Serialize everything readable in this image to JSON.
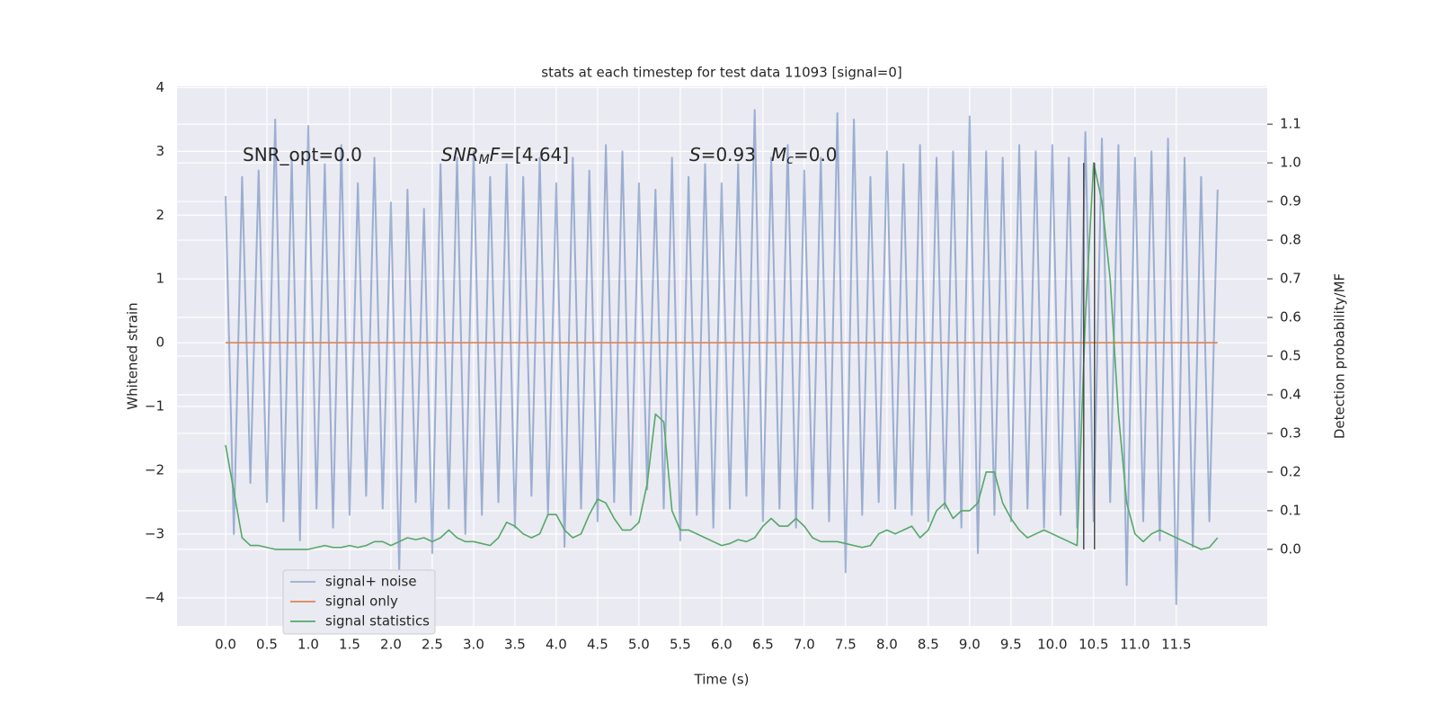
{
  "chart_data": {
    "type": "line",
    "title": "stats at each timestep for test data 11093 [signal=0]",
    "xlabel": "Time (s)",
    "ylabel": "Whitened strain",
    "y2label": "Detection probability/MF",
    "xlim": [
      -0.587,
      12.6
    ],
    "ylim": [
      -4.44,
      4.02
    ],
    "y2lim": [
      -0.198,
      1.198
    ],
    "xticks": [
      {
        "value": 0,
        "label": "0.0"
      },
      0.5,
      {
        "value": 1,
        "label": "1.0"
      },
      1.5,
      {
        "value": 2,
        "label": "2.0"
      },
      2.5,
      {
        "value": 3,
        "label": "3.0"
      },
      3.5,
      {
        "value": 4,
        "label": "4.0"
      },
      4.5,
      {
        "value": 5,
        "label": "5.0"
      },
      5.5,
      {
        "value": 6,
        "label": "6.0"
      },
      6.5,
      {
        "value": 7,
        "label": "7.0"
      },
      7.5,
      {
        "value": 8,
        "label": "8.0"
      },
      8.5,
      {
        "value": 9,
        "label": "9.0"
      },
      9.5,
      {
        "value": 10,
        "label": "10.0"
      },
      10.5,
      {
        "value": 11,
        "label": "11.0"
      },
      11.5
    ],
    "yticks": [
      {
        "value": -4,
        "label": "−4"
      },
      {
        "value": -3,
        "label": "−3"
      },
      {
        "value": -2,
        "label": "−2"
      },
      {
        "value": -1,
        "label": "−1"
      },
      0,
      1,
      2,
      3,
      4
    ],
    "y2ticks": [
      {
        "value": 0,
        "label": "0.0"
      },
      0.1,
      0.2,
      0.3,
      0.4,
      0.5,
      0.6,
      0.7,
      0.8,
      0.9,
      {
        "value": 1,
        "label": "1.0"
      },
      1.1
    ],
    "grid": true,
    "legend": "lower left",
    "x": [
      0,
      0.1,
      0.2,
      0.3,
      0.4,
      0.5,
      0.6,
      0.7,
      0.8,
      0.9,
      1,
      1.1,
      1.2,
      1.3,
      1.4,
      1.5,
      1.6,
      1.7,
      1.8,
      1.9,
      2,
      2.1,
      2.2,
      2.3,
      2.4,
      2.5,
      2.6,
      2.7,
      2.8,
      2.9,
      3,
      3.1,
      3.2,
      3.3,
      3.4,
      3.5,
      3.6,
      3.7,
      3.8,
      3.9,
      4,
      4.1,
      4.2,
      4.3,
      4.4,
      4.5,
      4.6,
      4.7,
      4.8,
      4.9,
      5,
      5.1,
      5.2,
      5.3,
      5.4,
      5.5,
      5.6,
      5.7,
      5.8,
      5.9,
      6,
      6.1,
      6.2,
      6.3,
      6.4,
      6.5,
      6.6,
      6.7,
      6.8,
      6.9,
      7,
      7.1,
      7.2,
      7.3,
      7.4,
      7.5,
      7.6,
      7.7,
      7.8,
      7.9,
      8,
      8.1,
      8.2,
      8.3,
      8.4,
      8.5,
      8.6,
      8.7,
      8.8,
      8.9,
      9,
      9.1,
      9.2,
      9.3,
      9.4,
      9.5,
      9.6,
      9.7,
      9.8,
      9.9,
      10,
      10.1,
      10.2,
      10.3,
      10.4,
      10.5,
      10.6,
      10.7,
      10.8,
      10.9,
      11,
      11.1,
      11.2,
      11.3,
      11.4,
      11.5,
      11.6,
      11.7,
      11.8,
      11.9,
      12
    ],
    "series": [
      {
        "name": "signal+ noise",
        "color": "#4c72b0",
        "alpha": 0.5,
        "values": [
          2.3,
          -3.0,
          2.6,
          -2.2,
          2.7,
          -2.5,
          3.5,
          -2.8,
          2.9,
          -3.1,
          3.4,
          -2.6,
          2.8,
          -2.9,
          3.1,
          -2.7,
          2.5,
          -2.4,
          2.9,
          -2.6,
          2.2,
          -3.6,
          2.4,
          -2.5,
          2.1,
          -3.3,
          2.8,
          -2.6,
          2.9,
          -3.0,
          3.0,
          -2.7,
          2.6,
          -2.5,
          2.8,
          -2.9,
          2.6,
          -2.4,
          2.9,
          -2.7,
          2.5,
          -3.2,
          2.9,
          -2.6,
          2.7,
          -2.8,
          3.1,
          -2.5,
          3.0,
          -2.7,
          2.5,
          -2.3,
          2.4,
          -2.6,
          2.9,
          -3.1,
          2.6,
          -2.7,
          2.8,
          -2.9,
          2.5,
          -2.6,
          2.8,
          -2.4,
          3.65,
          -2.8,
          2.9,
          -2.6,
          3.1,
          -2.9,
          2.7,
          -2.6,
          2.9,
          -2.8,
          3.6,
          -3.6,
          3.5,
          -2.7,
          2.6,
          -2.5,
          3.0,
          -2.6,
          2.8,
          -2.7,
          3.1,
          -2.8,
          2.9,
          -2.6,
          3.0,
          -2.9,
          3.55,
          -3.3,
          3.0,
          -2.7,
          2.9,
          -2.8,
          3.1,
          -2.6,
          3.0,
          -2.9,
          3.1,
          -2.7,
          2.9,
          -2.9,
          3.3,
          -2.8,
          3.2,
          -2.5,
          3.1,
          -3.8,
          2.9,
          -2.8,
          3.0,
          -3.1,
          3.2,
          -4.1,
          2.9,
          -3.2,
          2.6,
          -2.8,
          2.4
        ]
      },
      {
        "name": "signal only",
        "color": "#dd8452",
        "x": [
          0,
          12
        ],
        "values": [
          0,
          0
        ]
      },
      {
        "name": "signal statistics",
        "color": "#55a868",
        "axis": "y2",
        "values": [
          0.27,
          0.15,
          0.03,
          0.01,
          0.01,
          0.005,
          0,
          0,
          0,
          0,
          0,
          0.005,
          0.01,
          0.005,
          0.005,
          0.01,
          0.005,
          0.01,
          0.02,
          0.02,
          0.01,
          0.02,
          0.03,
          0.025,
          0.03,
          0.02,
          0.03,
          0.05,
          0.03,
          0.02,
          0.02,
          0.015,
          0.01,
          0.03,
          0.07,
          0.06,
          0.04,
          0.03,
          0.04,
          0.09,
          0.09,
          0.05,
          0.03,
          0.04,
          0.09,
          0.13,
          0.12,
          0.08,
          0.05,
          0.05,
          0.07,
          0.17,
          0.35,
          0.33,
          0.1,
          0.05,
          0.05,
          0.04,
          0.03,
          0.02,
          0.01,
          0.015,
          0.025,
          0.02,
          0.03,
          0.06,
          0.08,
          0.06,
          0.06,
          0.08,
          0.06,
          0.03,
          0.02,
          0.02,
          0.02,
          0.015,
          0.01,
          0.005,
          0.01,
          0.04,
          0.05,
          0.04,
          0.05,
          0.06,
          0.03,
          0.05,
          0.1,
          0.12,
          0.08,
          0.1,
          0.1,
          0.12,
          0.2,
          0.2,
          0.12,
          0.08,
          0.05,
          0.03,
          0.04,
          0.05,
          0.04,
          0.03,
          0.02,
          0.01,
          0.6,
          1.0,
          0.9,
          0.7,
          0.35,
          0.12,
          0.04,
          0.02,
          0.04,
          0.05,
          0.04,
          0.03,
          0.02,
          0.01,
          0,
          0.005,
          0.03
        ]
      }
    ],
    "vlines": {
      "x": [
        10.38,
        10.51
      ],
      "color": "#4a4a4a",
      "y2range": [
        0,
        1.0
      ]
    },
    "annotations": [
      [
        {
          "text": "SNR_opt=0.0"
        }
      ],
      [
        {
          "text": "SNR",
          "it": true
        },
        {
          "text": "M",
          "it": true,
          "sub": true
        },
        {
          "text": "F",
          "it": true
        },
        {
          "text": "=[4.64]"
        }
      ],
      [
        {
          "text": "S",
          "it": true
        },
        {
          "text": "=0.93"
        }
      ],
      [
        {
          "text": "M",
          "it": true
        },
        {
          "text": "c",
          "it": true,
          "sub": true
        },
        {
          "text": "=0.0"
        }
      ]
    ]
  }
}
